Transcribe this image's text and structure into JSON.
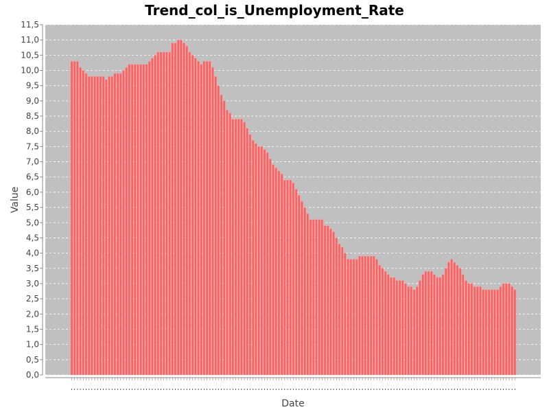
{
  "chart_data": {
    "type": "bar",
    "title": "Trend_col_is_Unemployment_Rate",
    "xlabel": "Date",
    "ylabel": "Value",
    "ylim": [
      0,
      11.5
    ],
    "y_tick_step": 0.5,
    "y_tick_decimal_separator": ",",
    "x_tick_labels_visible": false,
    "grid": true,
    "colors": {
      "plot_background": "#c0c0c0",
      "bar_fill": "#ff5f5f",
      "bar_edge": "#ff9a9a",
      "grid": "#ffffff"
    },
    "series": [
      {
        "values": [
          10.3,
          10.3,
          10.3,
          10.1,
          10.0,
          9.9,
          9.8,
          9.8,
          9.8,
          9.8,
          9.8,
          9.8,
          9.7,
          9.8,
          9.8,
          9.9,
          9.9,
          9.9,
          10.0,
          10.1,
          10.2,
          10.2,
          10.2,
          10.2,
          10.2,
          10.2,
          10.2,
          10.3,
          10.4,
          10.5,
          10.6,
          10.6,
          10.6,
          10.6,
          10.6,
          10.9,
          10.9,
          11.0,
          11.0,
          10.9,
          10.8,
          10.6,
          10.5,
          10.4,
          10.3,
          10.2,
          10.3,
          10.3,
          10.3,
          10.1,
          9.8,
          9.5,
          9.2,
          9.0,
          8.7,
          8.6,
          8.4,
          8.4,
          8.4,
          8.4,
          8.3,
          8.1,
          7.9,
          7.7,
          7.6,
          7.5,
          7.5,
          7.4,
          7.3,
          7.1,
          6.9,
          6.8,
          6.7,
          6.6,
          6.4,
          6.4,
          6.4,
          6.3,
          6.1,
          5.9,
          5.7,
          5.5,
          5.3,
          5.1,
          5.1,
          5.1,
          5.1,
          5.1,
          4.9,
          4.9,
          4.8,
          4.7,
          4.5,
          4.3,
          4.2,
          4.0,
          3.8,
          3.8,
          3.8,
          3.8,
          3.9,
          3.9,
          3.9,
          3.9,
          3.9,
          3.9,
          3.8,
          3.6,
          3.5,
          3.4,
          3.3,
          3.2,
          3.2,
          3.1,
          3.1,
          3.1,
          3.0,
          2.9,
          2.9,
          2.8,
          2.9,
          3.1,
          3.3,
          3.4,
          3.4,
          3.4,
          3.3,
          3.2,
          3.2,
          3.3,
          3.5,
          3.7,
          3.8,
          3.7,
          3.6,
          3.5,
          3.3,
          3.1,
          3.0,
          3.0,
          2.9,
          2.9,
          2.9,
          2.8,
          2.8,
          2.8,
          2.8,
          2.8,
          2.8,
          2.9,
          3.0,
          3.0,
          3.0,
          2.9,
          2.8
        ]
      }
    ]
  }
}
